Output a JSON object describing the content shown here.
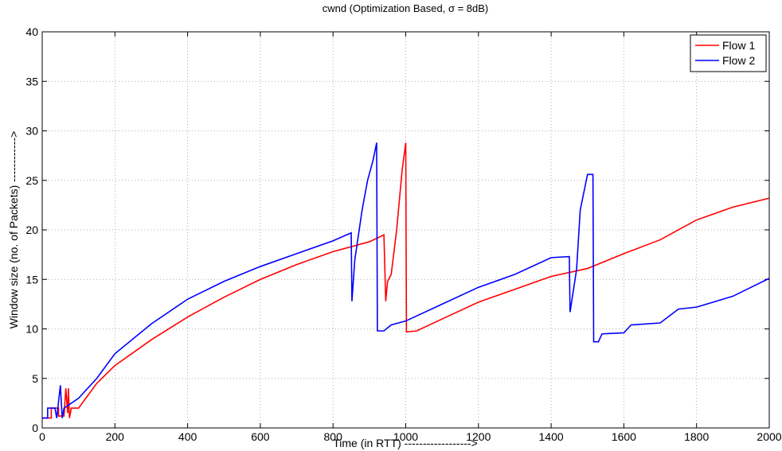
{
  "chart_data": {
    "type": "line",
    "title": "cwnd (Optimization Based, σ = 8dB)",
    "xlabel": "Time (in RTT) ------------------>",
    "ylabel": "Window size (no. of Packets) ------------>",
    "xlim": [
      0,
      2000
    ],
    "xticks": [
      0,
      200,
      400,
      600,
      800,
      1000,
      1200,
      1400,
      1600,
      1800,
      2000
    ],
    "ylim": [
      0,
      40
    ],
    "yticks": [
      0,
      5,
      10,
      15,
      20,
      25,
      30,
      35,
      40
    ],
    "grid": true,
    "legend": "upper right",
    "series": [
      {
        "name": "Flow 1",
        "color": "#ff0000",
        "x": [
          0,
          25,
          25,
          45,
          45,
          60,
          65,
          70,
          72,
          75,
          80,
          100,
          120,
          150,
          200,
          300,
          400,
          500,
          600,
          700,
          800,
          900,
          940,
          945,
          950,
          960,
          975,
          990,
          1000,
          1002,
          1030,
          1100,
          1200,
          1300,
          1400,
          1500,
          1600,
          1700,
          1800,
          1900,
          2000
        ],
        "values": [
          1,
          1,
          2,
          2,
          1.2,
          1.2,
          4,
          1.5,
          4,
          1,
          2,
          2,
          3,
          4.5,
          6.3,
          8.9,
          11.2,
          13.2,
          15,
          16.5,
          17.8,
          18.8,
          19.5,
          12.8,
          14.8,
          15.5,
          20,
          26,
          28.8,
          9.7,
          9.8,
          11,
          12.7,
          14,
          15.3,
          16.1,
          17.6,
          19,
          21,
          22.3,
          23.2
        ]
      },
      {
        "name": "Flow 2",
        "color": "#0000ff",
        "x": [
          0,
          15,
          15,
          35,
          40,
          50,
          55,
          60,
          100,
          150,
          200,
          300,
          400,
          500,
          600,
          700,
          800,
          850,
          852,
          860,
          880,
          895,
          910,
          920,
          922,
          940,
          960,
          1000,
          1100,
          1200,
          1300,
          1400,
          1450,
          1452,
          1470,
          1480,
          1495,
          1500,
          1515,
          1517,
          1530,
          1540,
          1600,
          1620,
          1700,
          1750,
          1800,
          1900,
          1950,
          2000
        ],
        "values": [
          1,
          1,
          2,
          2,
          1,
          4.3,
          1,
          2,
          3,
          5,
          7.5,
          10.5,
          13,
          14.8,
          16.3,
          17.6,
          18.9,
          19.7,
          12.8,
          17,
          22,
          25,
          27,
          28.8,
          9.8,
          9.8,
          10.4,
          10.8,
          12.5,
          14.2,
          15.5,
          17.2,
          17.3,
          11.7,
          16,
          22,
          24.7,
          25.6,
          25.6,
          8.7,
          8.7,
          9.5,
          9.6,
          10.4,
          10.6,
          12,
          12.2,
          13.3,
          14.2,
          15.1
        ]
      }
    ]
  }
}
